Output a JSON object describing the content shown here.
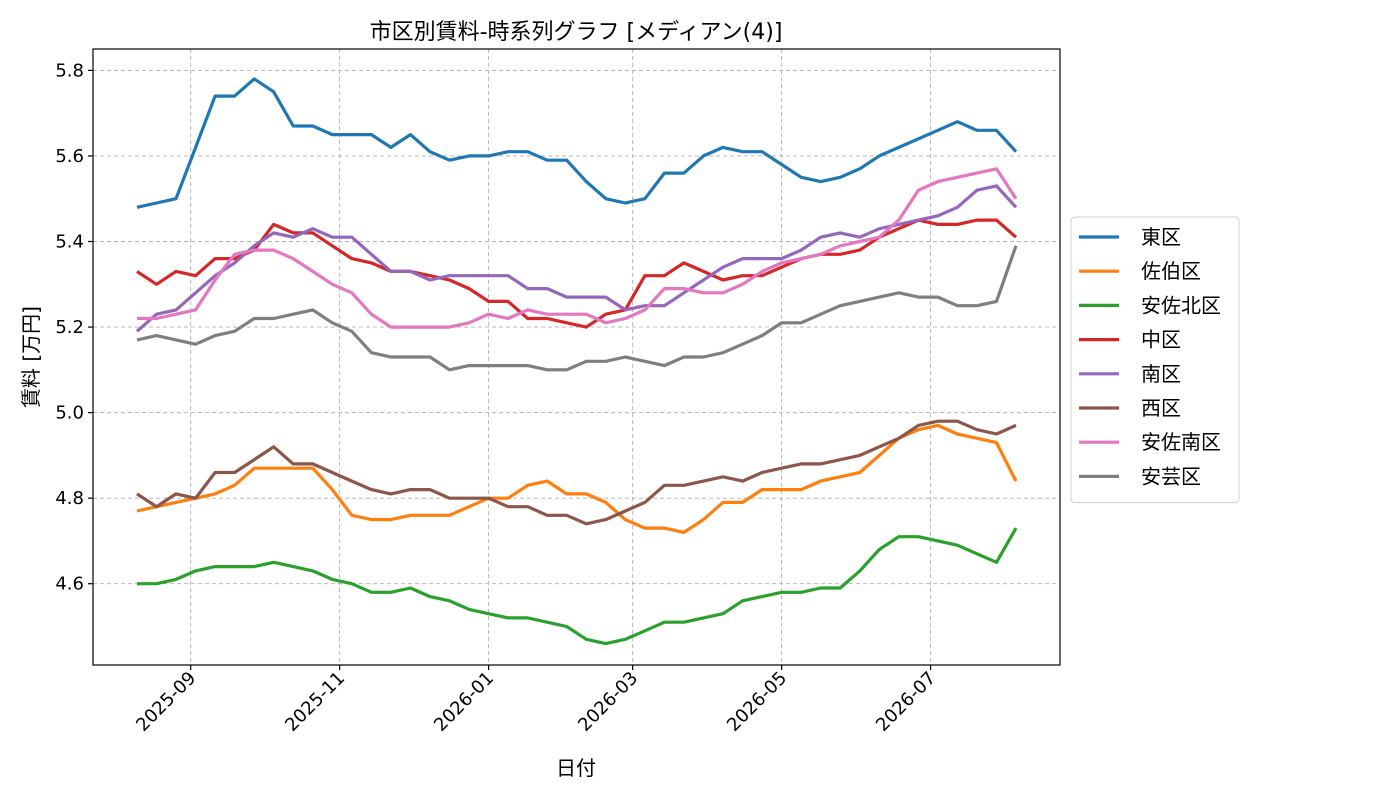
{
  "chart_data": {
    "type": "line",
    "title": "市区別賃料-時系列グラフ [メディアン(4)]",
    "xlabel": "日付",
    "ylabel": "賃料 [万円]",
    "xlim": [
      "2025-07-23",
      "2026-08-23"
    ],
    "ylim": [
      4.41,
      5.85
    ],
    "yticks": [
      4.6,
      4.8,
      5.0,
      5.2,
      5.4,
      5.6,
      5.8
    ],
    "ytick_labels": [
      "4.6",
      "4.8",
      "5.0",
      "5.2",
      "5.4",
      "5.6",
      "5.8"
    ],
    "xticks": [
      "2025-09-01",
      "2025-11-01",
      "2026-01-01",
      "2026-03-01",
      "2026-05-01",
      "2026-07-01"
    ],
    "xtick_labels": [
      "2025-09",
      "2025-11",
      "2026-01",
      "2026-03",
      "2026-05",
      "2026-07"
    ],
    "grid": true,
    "legend_position": "center-right outside plot",
    "x": [
      "2025-08-10",
      "2025-08-18",
      "2025-08-26",
      "2025-09-03",
      "2025-09-11",
      "2025-09-19",
      "2025-09-27",
      "2025-10-05",
      "2025-10-13",
      "2025-10-21",
      "2025-10-29",
      "2025-11-06",
      "2025-11-14",
      "2025-11-22",
      "2025-11-30",
      "2025-12-08",
      "2025-12-16",
      "2025-12-24",
      "2026-01-01",
      "2026-01-09",
      "2026-01-17",
      "2026-01-25",
      "2026-02-02",
      "2026-02-10",
      "2026-02-18",
      "2026-02-26",
      "2026-03-06",
      "2026-03-14",
      "2026-03-22",
      "2026-03-30",
      "2026-04-07",
      "2026-04-15",
      "2026-04-23",
      "2026-05-01",
      "2026-05-09",
      "2026-05-17",
      "2026-05-25",
      "2026-06-02",
      "2026-06-10",
      "2026-06-18",
      "2026-06-26",
      "2026-07-04",
      "2026-07-12",
      "2026-07-20",
      "2026-07-28",
      "2026-08-05"
    ],
    "series": [
      {
        "name": "東区",
        "color": "#1f77b4",
        "values": [
          5.48,
          5.49,
          5.5,
          5.62,
          5.74,
          5.74,
          5.78,
          5.75,
          5.67,
          5.67,
          5.65,
          5.65,
          5.65,
          5.62,
          5.65,
          5.61,
          5.59,
          5.6,
          5.6,
          5.61,
          5.61,
          5.59,
          5.59,
          5.54,
          5.5,
          5.49,
          5.5,
          5.56,
          5.56,
          5.6,
          5.62,
          5.61,
          5.61,
          5.58,
          5.55,
          5.54,
          5.55,
          5.57,
          5.6,
          5.62,
          5.64,
          5.66,
          5.68,
          5.66,
          5.66,
          5.61
        ]
      },
      {
        "name": "佐伯区",
        "color": "#ff7f0e",
        "values": [
          4.77,
          4.78,
          4.79,
          4.8,
          4.81,
          4.83,
          4.87,
          4.87,
          4.87,
          4.87,
          4.82,
          4.76,
          4.75,
          4.75,
          4.76,
          4.76,
          4.76,
          4.78,
          4.8,
          4.8,
          4.83,
          4.84,
          4.81,
          4.81,
          4.79,
          4.75,
          4.73,
          4.73,
          4.72,
          4.75,
          4.79,
          4.79,
          4.82,
          4.82,
          4.82,
          4.84,
          4.85,
          4.86,
          4.9,
          4.94,
          4.96,
          4.97,
          4.95,
          4.94,
          4.93,
          4.84
        ]
      },
      {
        "name": "安佐北区",
        "color": "#2ca02c",
        "values": [
          4.6,
          4.6,
          4.61,
          4.63,
          4.64,
          4.64,
          4.64,
          4.65,
          4.64,
          4.63,
          4.61,
          4.6,
          4.58,
          4.58,
          4.59,
          4.57,
          4.56,
          4.54,
          4.53,
          4.52,
          4.52,
          4.51,
          4.5,
          4.47,
          4.46,
          4.47,
          4.49,
          4.51,
          4.51,
          4.52,
          4.53,
          4.56,
          4.57,
          4.58,
          4.58,
          4.59,
          4.59,
          4.63,
          4.68,
          4.71,
          4.71,
          4.7,
          4.69,
          4.67,
          4.65,
          4.73
        ]
      },
      {
        "name": "中区",
        "color": "#d62728",
        "values": [
          5.33,
          5.3,
          5.33,
          5.32,
          5.36,
          5.36,
          5.38,
          5.44,
          5.42,
          5.42,
          5.39,
          5.36,
          5.35,
          5.33,
          5.33,
          5.32,
          5.31,
          5.29,
          5.26,
          5.26,
          5.22,
          5.22,
          5.21,
          5.2,
          5.23,
          5.24,
          5.32,
          5.32,
          5.35,
          5.33,
          5.31,
          5.32,
          5.32,
          5.34,
          5.36,
          5.37,
          5.37,
          5.38,
          5.41,
          5.43,
          5.45,
          5.44,
          5.44,
          5.45,
          5.45,
          5.41
        ]
      },
      {
        "name": "南区",
        "color": "#9467bd",
        "values": [
          5.19,
          5.23,
          5.24,
          5.28,
          5.32,
          5.35,
          5.39,
          5.42,
          5.41,
          5.43,
          5.41,
          5.41,
          5.37,
          5.33,
          5.33,
          5.31,
          5.32,
          5.32,
          5.32,
          5.32,
          5.29,
          5.29,
          5.27,
          5.27,
          5.27,
          5.24,
          5.25,
          5.25,
          5.28,
          5.31,
          5.34,
          5.36,
          5.36,
          5.36,
          5.38,
          5.41,
          5.42,
          5.41,
          5.43,
          5.44,
          5.45,
          5.46,
          5.48,
          5.52,
          5.53,
          5.48
        ]
      },
      {
        "name": "西区",
        "color": "#8c564b",
        "values": [
          4.81,
          4.78,
          4.81,
          4.8,
          4.86,
          4.86,
          4.89,
          4.92,
          4.88,
          4.88,
          4.86,
          4.84,
          4.82,
          4.81,
          4.82,
          4.82,
          4.8,
          4.8,
          4.8,
          4.78,
          4.78,
          4.76,
          4.76,
          4.74,
          4.75,
          4.77,
          4.79,
          4.83,
          4.83,
          4.84,
          4.85,
          4.84,
          4.86,
          4.87,
          4.88,
          4.88,
          4.89,
          4.9,
          4.92,
          4.94,
          4.97,
          4.98,
          4.98,
          4.96,
          4.95,
          4.97
        ]
      },
      {
        "name": "安佐南区",
        "color": "#e377c2",
        "values": [
          5.22,
          5.22,
          5.23,
          5.24,
          5.31,
          5.37,
          5.38,
          5.38,
          5.36,
          5.33,
          5.3,
          5.28,
          5.23,
          5.2,
          5.2,
          5.2,
          5.2,
          5.21,
          5.23,
          5.22,
          5.24,
          5.23,
          5.23,
          5.23,
          5.21,
          5.22,
          5.24,
          5.29,
          5.29,
          5.28,
          5.28,
          5.3,
          5.33,
          5.35,
          5.36,
          5.37,
          5.39,
          5.4,
          5.41,
          5.45,
          5.52,
          5.54,
          5.55,
          5.56,
          5.57,
          5.5
        ]
      },
      {
        "name": "安芸区",
        "color": "#7f7f7f",
        "values": [
          5.17,
          5.18,
          5.17,
          5.16,
          5.18,
          5.19,
          5.22,
          5.22,
          5.23,
          5.24,
          5.21,
          5.19,
          5.14,
          5.13,
          5.13,
          5.13,
          5.1,
          5.11,
          5.11,
          5.11,
          5.11,
          5.1,
          5.1,
          5.12,
          5.12,
          5.13,
          5.12,
          5.11,
          5.13,
          5.13,
          5.14,
          5.16,
          5.18,
          5.21,
          5.21,
          5.23,
          5.25,
          5.26,
          5.27,
          5.28,
          5.27,
          5.27,
          5.25,
          5.25,
          5.26,
          5.39
        ]
      }
    ]
  }
}
